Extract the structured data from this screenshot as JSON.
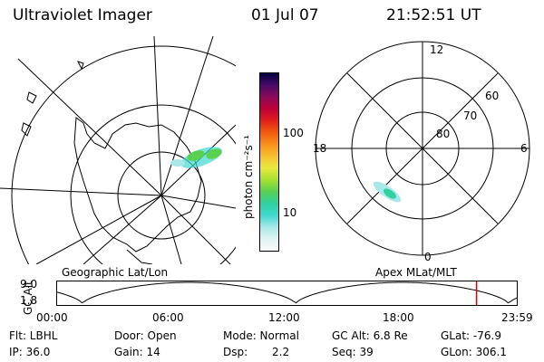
{
  "header": {
    "title": "Ultraviolet Imager",
    "date": "01 Jul 07",
    "time": "21:52:51 UT"
  },
  "left_map": {
    "label": "Geographic Lat/Lon"
  },
  "colorbar": {
    "unit_label": "photon cm⁻²s⁻¹",
    "ticks": [
      "100",
      "10"
    ],
    "colors": [
      "#000040",
      "#4a0a6a",
      "#8a0a5a",
      "#c0003a",
      "#e0201a",
      "#f05a10",
      "#f8901a",
      "#f8c030",
      "#e8e840",
      "#a8e030",
      "#58d050",
      "#30d0a0",
      "#40d8d0",
      "#a8e8e8",
      "#e0f4f4",
      "#f8f8f8"
    ]
  },
  "right_map": {
    "label": "Apex  MLat/MLT",
    "mlt_labels": {
      "top": "12",
      "left": "18",
      "right": "6",
      "bottom": "0"
    },
    "lat_labels": [
      "60",
      "70",
      "80"
    ]
  },
  "altitude_plot": {
    "ylabel": "GC Alt",
    "yticks": [
      "9.0",
      "1.8"
    ],
    "xticks": [
      "00:00",
      "06:00",
      "12:00",
      "18:00",
      "23:59"
    ],
    "marker_time_hours": 21.88,
    "marker_color": "#e00000"
  },
  "info": {
    "flt": "Flt: LBHL",
    "ip": "IP: 36.0",
    "door": "Door: Open",
    "gain": "Gain: 14",
    "mode": "Mode: Normal",
    "dsp_label": "Dsp:",
    "dsp_value": "2.2",
    "gcalt": "GC Alt: 6.8 Re",
    "seq": "Seq: 39",
    "glat": "GLat: -76.9",
    "glon": "GLon: 306.1"
  }
}
